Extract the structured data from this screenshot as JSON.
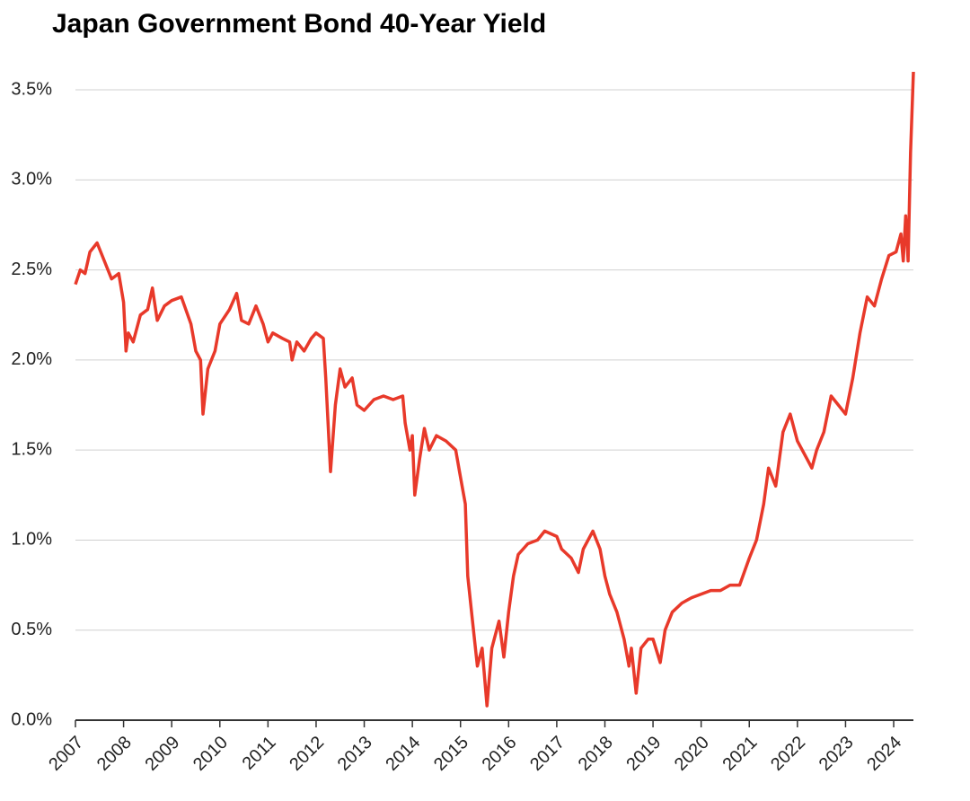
{
  "chart_data": {
    "type": "line",
    "title": "Japan Government Bond 40-Year Yield",
    "x": [
      2007.0,
      2007.1,
      2007.2,
      2007.3,
      2007.45,
      2007.6,
      2007.75,
      2007.9,
      2008.0,
      2008.05,
      2008.1,
      2008.2,
      2008.35,
      2008.5,
      2008.6,
      2008.7,
      2008.85,
      2009.0,
      2009.2,
      2009.4,
      2009.5,
      2009.6,
      2009.65,
      2009.75,
      2009.9,
      2010.0,
      2010.2,
      2010.35,
      2010.45,
      2010.6,
      2010.75,
      2010.9,
      2011.0,
      2011.1,
      2011.3,
      2011.45,
      2011.5,
      2011.6,
      2011.75,
      2011.9,
      2012.0,
      2012.15,
      2012.2,
      2012.3,
      2012.4,
      2012.5,
      2012.6,
      2012.75,
      2012.85,
      2013.0,
      2013.2,
      2013.4,
      2013.6,
      2013.8,
      2013.85,
      2013.95,
      2014.0,
      2014.05,
      2014.15,
      2014.25,
      2014.35,
      2014.5,
      2014.7,
      2014.9,
      2015.0,
      2015.1,
      2015.15,
      2015.25,
      2015.35,
      2015.45,
      2015.55,
      2015.65,
      2015.8,
      2015.9,
      2016.0,
      2016.1,
      2016.2,
      2016.4,
      2016.6,
      2016.75,
      2017.0,
      2017.1,
      2017.3,
      2017.45,
      2017.55,
      2017.75,
      2017.9,
      2018.0,
      2018.1,
      2018.25,
      2018.4,
      2018.5,
      2018.55,
      2018.65,
      2018.75,
      2018.9,
      2019.0,
      2019.15,
      2019.25,
      2019.4,
      2019.6,
      2019.8,
      2020.0,
      2020.2,
      2020.4,
      2020.6,
      2020.8,
      2021.0,
      2021.15,
      2021.3,
      2021.4,
      2021.55,
      2021.7,
      2021.85,
      2022.0,
      2022.2,
      2022.3,
      2022.4,
      2022.55,
      2022.7,
      2022.85,
      2023.0,
      2023.15,
      2023.3,
      2023.45,
      2023.6,
      2023.75,
      2023.9,
      2024.05,
      2024.15,
      2024.2,
      2024.25,
      2024.3,
      2024.35,
      2024.41
    ],
    "series": [
      {
        "color": "#e8392a",
        "values": [
          2.42,
          2.5,
          2.48,
          2.6,
          2.65,
          2.55,
          2.45,
          2.48,
          2.32,
          2.05,
          2.15,
          2.1,
          2.25,
          2.28,
          2.4,
          2.22,
          2.3,
          2.33,
          2.35,
          2.2,
          2.05,
          2.0,
          1.7,
          1.95,
          2.05,
          2.2,
          2.28,
          2.37,
          2.22,
          2.2,
          2.3,
          2.2,
          2.1,
          2.15,
          2.12,
          2.1,
          2.0,
          2.1,
          2.05,
          2.12,
          2.15,
          2.12,
          1.9,
          1.38,
          1.75,
          1.95,
          1.85,
          1.9,
          1.75,
          1.72,
          1.78,
          1.8,
          1.78,
          1.8,
          1.65,
          1.5,
          1.58,
          1.25,
          1.45,
          1.62,
          1.5,
          1.58,
          1.55,
          1.5,
          1.35,
          1.2,
          0.8,
          0.55,
          0.3,
          0.4,
          0.08,
          0.4,
          0.55,
          0.35,
          0.6,
          0.8,
          0.92,
          0.98,
          1.0,
          1.05,
          1.02,
          0.95,
          0.9,
          0.82,
          0.95,
          1.05,
          0.95,
          0.8,
          0.7,
          0.6,
          0.45,
          0.3,
          0.4,
          0.15,
          0.4,
          0.45,
          0.45,
          0.32,
          0.5,
          0.6,
          0.65,
          0.68,
          0.7,
          0.72,
          0.72,
          0.75,
          0.75,
          0.9,
          1.0,
          1.2,
          1.4,
          1.3,
          1.6,
          1.7,
          1.55,
          1.45,
          1.4,
          1.5,
          1.6,
          1.8,
          1.75,
          1.7,
          1.9,
          2.15,
          2.35,
          2.3,
          2.45,
          2.58,
          2.6,
          2.7,
          2.55,
          2.8,
          2.55,
          3.15,
          3.6
        ]
      }
    ],
    "xlim": [
      2007,
      2024.41
    ],
    "xticks": [
      2007,
      2008,
      2009,
      2010,
      2011,
      2012,
      2013,
      2014,
      2015,
      2016,
      2017,
      2018,
      2019,
      2020,
      2021,
      2022,
      2023,
      2024
    ],
    "ylim": [
      0,
      3.6
    ],
    "yticks": [
      {
        "value": 0,
        "label": "0.0%"
      },
      {
        "value": 0.5,
        "label": "0.5%"
      },
      {
        "value": 1,
        "label": "1.0%"
      },
      {
        "value": 1.5,
        "label": "1.5%"
      },
      {
        "value": 2,
        "label": "2.0%"
      },
      {
        "value": 2.5,
        "label": "2.5%"
      },
      {
        "value": 3,
        "label": "3.0%"
      },
      {
        "value": 3.5,
        "label": "3.5%"
      }
    ],
    "grid": true
  }
}
